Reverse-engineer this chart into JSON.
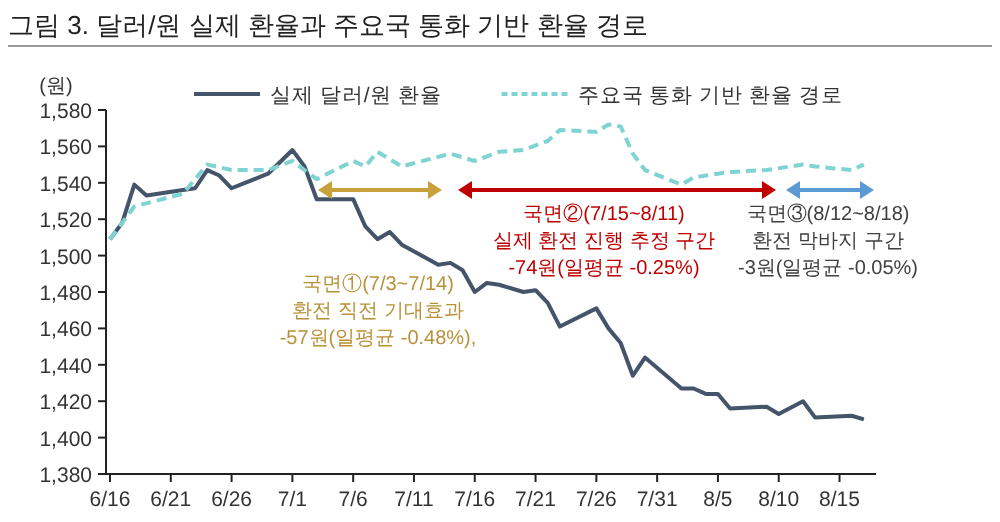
{
  "chart_data": {
    "type": "line",
    "title": "그림 3. 달러/원 실제 환율과 주요국 통화 기반 환율 경로",
    "ylabel": "(원)",
    "xlim": [
      "--06-16",
      "--08-18"
    ],
    "ylim": [
      1380,
      1580
    ],
    "xticks": [
      {
        "value": "--06-16",
        "label": "6/16"
      },
      {
        "value": "--06-21",
        "label": "6/21"
      },
      {
        "value": "--06-26",
        "label": "6/26"
      },
      {
        "value": "--07-01",
        "label": "7/1"
      },
      {
        "value": "--07-06",
        "label": "7/6"
      },
      {
        "value": "--07-11",
        "label": "7/11"
      },
      {
        "value": "--07-16",
        "label": "7/16"
      },
      {
        "value": "--07-21",
        "label": "7/21"
      },
      {
        "value": "--07-26",
        "label": "7/26"
      },
      {
        "value": "--07-31",
        "label": "7/31"
      },
      {
        "value": "--08-05",
        "label": "8/5"
      },
      {
        "value": "--08-10",
        "label": "8/10"
      },
      {
        "value": "--08-15",
        "label": "8/15"
      }
    ],
    "yticks": [
      {
        "value": 1380,
        "label": "1,380"
      },
      {
        "value": 1400,
        "label": "1,400"
      },
      {
        "value": 1420,
        "label": "1,420"
      },
      {
        "value": 1440,
        "label": "1,440"
      },
      {
        "value": 1460,
        "label": "1,460"
      },
      {
        "value": 1480,
        "label": "1,480"
      },
      {
        "value": 1500,
        "label": "1,500"
      },
      {
        "value": 1520,
        "label": "1,520"
      },
      {
        "value": 1540,
        "label": "1,540"
      },
      {
        "value": 1560,
        "label": "1,560"
      },
      {
        "value": 1580,
        "label": "1,580"
      }
    ],
    "grid": false,
    "legend": "top",
    "marker": "none",
    "series": [
      {
        "name": "실제 달러/원 환율",
        "color": "#44546a",
        "line_style": "solid",
        "x": [
          "--06-16",
          "--06-17",
          "--06-18",
          "--06-19",
          "--06-22",
          "--06-23",
          "--06-24",
          "--06-25",
          "--06-26",
          "--06-29",
          "--07-01",
          "--07-02",
          "--07-03",
          "--07-06",
          "--07-07",
          "--07-08",
          "--07-09",
          "--07-10",
          "--07-13",
          "--07-14",
          "--07-15",
          "--07-16",
          "--07-17",
          "--07-18",
          "--07-20",
          "--07-21",
          "--07-22",
          "--07-23",
          "--07-26",
          "--07-27",
          "--07-28",
          "--07-29",
          "--07-30",
          "--08-02",
          "--08-03",
          "--08-04",
          "--08-05",
          "--08-06",
          "--08-09",
          "--08-10",
          "--08-12",
          "--08-13",
          "--08-16",
          "--08-17"
        ],
        "values": [
          1509,
          1518,
          1539,
          1533,
          1536,
          1537,
          1547,
          1544,
          1537,
          1545,
          1558,
          1549,
          1531,
          1531,
          1516,
          1509,
          1513,
          1506,
          1495,
          1496,
          1492,
          1480,
          1485,
          1484,
          1480,
          1481,
          1474,
          1461,
          1471,
          1460,
          1452,
          1434,
          1444,
          1427,
          1427,
          1424,
          1424,
          1416,
          1417,
          1413,
          1420,
          1411,
          1412,
          1410
        ]
      },
      {
        "name": "주요국 통화 기반 환율 경로",
        "color": "#7fd3d3",
        "line_style": "dashed",
        "x": [
          "--06-16",
          "--06-18",
          "--06-22",
          "--06-24",
          "--06-26",
          "--06-29",
          "--07-01",
          "--07-03",
          "--07-06",
          "--07-07",
          "--07-08",
          "--07-10",
          "--07-14",
          "--07-16",
          "--07-18",
          "--07-20",
          "--07-22",
          "--07-23",
          "--07-26",
          "--07-27",
          "--07-28",
          "--07-29",
          "--07-30",
          "--08-02",
          "--08-03",
          "--08-05",
          "--08-06",
          "--08-09",
          "--08-12",
          "--08-13",
          "--08-16",
          "--08-17"
        ],
        "values": [
          1509,
          1527,
          1534,
          1550,
          1547,
          1547,
          1552,
          1542,
          1552,
          1549,
          1557,
          1549,
          1556,
          1552,
          1557,
          1558,
          1563,
          1569,
          1568,
          1572,
          1571,
          1556,
          1547,
          1539,
          1543,
          1545,
          1546,
          1547,
          1550,
          1549,
          1547,
          1550
        ]
      }
    ],
    "annotations": [
      "국면①(7/3~7/14)\n환전 직전 기대효과\n-57원(일평균 -0.48%),",
      "국면②(7/15~8/11)\n실제 환전 진행 추정 구간\n-74원(일평균 -0.25%)",
      "국면③(8/12~8/18)\n환전 막바지 구간\n-3원(일평균 -0.05%)"
    ]
  }
}
